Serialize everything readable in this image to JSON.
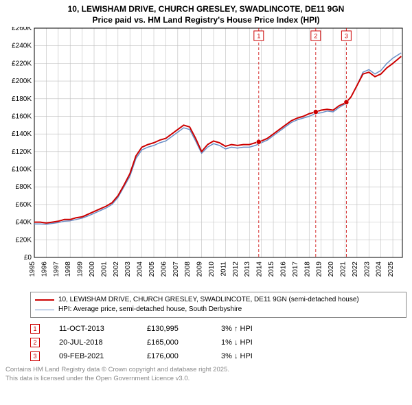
{
  "title_line1": "10, LEWISHAM DRIVE, CHURCH GRESLEY, SWADLINCOTE, DE11 9GN",
  "title_line2": "Price paid vs. HM Land Registry's House Price Index (HPI)",
  "chart": {
    "type": "line",
    "background_color": "#ffffff",
    "grid_color": "#bfbfbf",
    "axis_color": "#000000",
    "font_size_axis": 10,
    "ylim": [
      0,
      260000
    ],
    "ytick_step": 20000,
    "ytick_labels": [
      "£0",
      "£20K",
      "£40K",
      "£60K",
      "£80K",
      "£100K",
      "£120K",
      "£140K",
      "£160K",
      "£180K",
      "£200K",
      "£220K",
      "£240K",
      "£260K"
    ],
    "xlim": [
      1995,
      2025.8
    ],
    "xtick_years": [
      1995,
      1996,
      1997,
      1998,
      1999,
      2000,
      2001,
      2002,
      2003,
      2004,
      2005,
      2006,
      2007,
      2008,
      2009,
      2010,
      2011,
      2012,
      2013,
      2014,
      2015,
      2016,
      2017,
      2018,
      2019,
      2020,
      2021,
      2022,
      2023,
      2024,
      2025
    ],
    "series": [
      {
        "name": "10, LEWISHAM DRIVE, CHURCH GRESLEY, SWADLINCOTE, DE11 9GN (semi-detached house)",
        "color": "#cc0000",
        "line_width": 2,
        "points": [
          [
            1995.0,
            40000
          ],
          [
            1995.5,
            40000
          ],
          [
            1996.0,
            39000
          ],
          [
            1996.5,
            40000
          ],
          [
            1997.0,
            41000
          ],
          [
            1997.5,
            43000
          ],
          [
            1998.0,
            43000
          ],
          [
            1998.5,
            45000
          ],
          [
            1999.0,
            46000
          ],
          [
            1999.5,
            49000
          ],
          [
            2000.0,
            52000
          ],
          [
            2000.5,
            55000
          ],
          [
            2001.0,
            58000
          ],
          [
            2001.5,
            62000
          ],
          [
            2002.0,
            70000
          ],
          [
            2002.5,
            82000
          ],
          [
            2003.0,
            95000
          ],
          [
            2003.5,
            115000
          ],
          [
            2004.0,
            125000
          ],
          [
            2004.5,
            128000
          ],
          [
            2005.0,
            130000
          ],
          [
            2005.5,
            133000
          ],
          [
            2006.0,
            135000
          ],
          [
            2006.5,
            140000
          ],
          [
            2007.0,
            145000
          ],
          [
            2007.5,
            150000
          ],
          [
            2008.0,
            148000
          ],
          [
            2008.5,
            135000
          ],
          [
            2009.0,
            120000
          ],
          [
            2009.5,
            128000
          ],
          [
            2010.0,
            132000
          ],
          [
            2010.5,
            130000
          ],
          [
            2011.0,
            126000
          ],
          [
            2011.5,
            128000
          ],
          [
            2012.0,
            127000
          ],
          [
            2012.5,
            128000
          ],
          [
            2013.0,
            128000
          ],
          [
            2013.5,
            130000
          ],
          [
            2013.78,
            130995
          ],
          [
            2014.0,
            132000
          ],
          [
            2014.5,
            135000
          ],
          [
            2015.0,
            140000
          ],
          [
            2015.5,
            145000
          ],
          [
            2016.0,
            150000
          ],
          [
            2016.5,
            155000
          ],
          [
            2017.0,
            158000
          ],
          [
            2017.5,
            160000
          ],
          [
            2018.0,
            163000
          ],
          [
            2018.55,
            165000
          ],
          [
            2019.0,
            167000
          ],
          [
            2019.5,
            168000
          ],
          [
            2020.0,
            167000
          ],
          [
            2020.5,
            172000
          ],
          [
            2021.0,
            175000
          ],
          [
            2021.11,
            176000
          ],
          [
            2021.5,
            182000
          ],
          [
            2022.0,
            195000
          ],
          [
            2022.5,
            208000
          ],
          [
            2023.0,
            210000
          ],
          [
            2023.5,
            205000
          ],
          [
            2024.0,
            208000
          ],
          [
            2024.5,
            215000
          ],
          [
            2025.0,
            220000
          ],
          [
            2025.7,
            228000
          ]
        ]
      },
      {
        "name": "HPI: Average price, semi-detached house, South Derbyshire",
        "color": "#6a8fc7",
        "line_width": 1.5,
        "points": [
          [
            1995.0,
            38000
          ],
          [
            1995.5,
            38000
          ],
          [
            1996.0,
            37500
          ],
          [
            1996.5,
            38500
          ],
          [
            1997.0,
            39500
          ],
          [
            1997.5,
            41000
          ],
          [
            1998.0,
            41500
          ],
          [
            1998.5,
            43000
          ],
          [
            1999.0,
            44500
          ],
          [
            1999.5,
            47000
          ],
          [
            2000.0,
            50000
          ],
          [
            2000.5,
            53000
          ],
          [
            2001.0,
            56000
          ],
          [
            2001.5,
            60000
          ],
          [
            2002.0,
            68000
          ],
          [
            2002.5,
            80000
          ],
          [
            2003.0,
            92000
          ],
          [
            2003.5,
            112000
          ],
          [
            2004.0,
            122000
          ],
          [
            2004.5,
            125000
          ],
          [
            2005.0,
            127000
          ],
          [
            2005.5,
            130000
          ],
          [
            2006.0,
            132000
          ],
          [
            2006.5,
            137000
          ],
          [
            2007.0,
            142000
          ],
          [
            2007.5,
            147000
          ],
          [
            2008.0,
            145000
          ],
          [
            2008.5,
            132000
          ],
          [
            2009.0,
            118000
          ],
          [
            2009.5,
            125000
          ],
          [
            2010.0,
            129000
          ],
          [
            2010.5,
            127000
          ],
          [
            2011.0,
            123000
          ],
          [
            2011.5,
            125000
          ],
          [
            2012.0,
            124000
          ],
          [
            2012.5,
            125000
          ],
          [
            2013.0,
            125000
          ],
          [
            2013.5,
            127000
          ],
          [
            2014.0,
            130000
          ],
          [
            2014.5,
            133000
          ],
          [
            2015.0,
            138000
          ],
          [
            2015.5,
            143000
          ],
          [
            2016.0,
            148000
          ],
          [
            2016.5,
            153000
          ],
          [
            2017.0,
            156000
          ],
          [
            2017.5,
            158000
          ],
          [
            2018.0,
            160000
          ],
          [
            2018.5,
            163000
          ],
          [
            2019.0,
            164000
          ],
          [
            2019.5,
            166000
          ],
          [
            2020.0,
            165000
          ],
          [
            2020.5,
            170000
          ],
          [
            2021.0,
            174000
          ],
          [
            2021.5,
            182000
          ],
          [
            2022.0,
            195000
          ],
          [
            2022.5,
            210000
          ],
          [
            2023.0,
            213000
          ],
          [
            2023.5,
            208000
          ],
          [
            2024.0,
            212000
          ],
          [
            2024.5,
            220000
          ],
          [
            2025.0,
            226000
          ],
          [
            2025.7,
            232000
          ]
        ]
      }
    ],
    "event_markers": [
      {
        "n": "1",
        "x": 2013.78,
        "color": "#cc0000"
      },
      {
        "n": "2",
        "x": 2018.55,
        "color": "#cc0000"
      },
      {
        "n": "3",
        "x": 2021.11,
        "color": "#cc0000"
      }
    ],
    "sale_points": [
      {
        "x": 2013.78,
        "y": 130995,
        "color": "#cc0000"
      },
      {
        "x": 2018.55,
        "y": 165000,
        "color": "#cc0000"
      },
      {
        "x": 2021.11,
        "y": 176000,
        "color": "#cc0000"
      }
    ]
  },
  "legend": {
    "rows": [
      {
        "color": "#cc0000",
        "width": 2,
        "label": "10, LEWISHAM DRIVE, CHURCH GRESLEY, SWADLINCOTE, DE11 9GN (semi-detached house)"
      },
      {
        "color": "#6a8fc7",
        "width": 1.5,
        "label": "HPI: Average price, semi-detached house, South Derbyshire"
      }
    ]
  },
  "events": [
    {
      "n": "1",
      "date": "11-OCT-2013",
      "price": "£130,995",
      "pct": "3% ↑ HPI",
      "marker_color": "#cc0000"
    },
    {
      "n": "2",
      "date": "20-JUL-2018",
      "price": "£165,000",
      "pct": "1% ↓ HPI",
      "marker_color": "#cc0000"
    },
    {
      "n": "3",
      "date": "09-FEB-2021",
      "price": "£176,000",
      "pct": "3% ↓ HPI",
      "marker_color": "#cc0000"
    }
  ],
  "footer_line1": "Contains HM Land Registry data © Crown copyright and database right 2025.",
  "footer_line2": "This data is licensed under the Open Government Licence v3.0."
}
